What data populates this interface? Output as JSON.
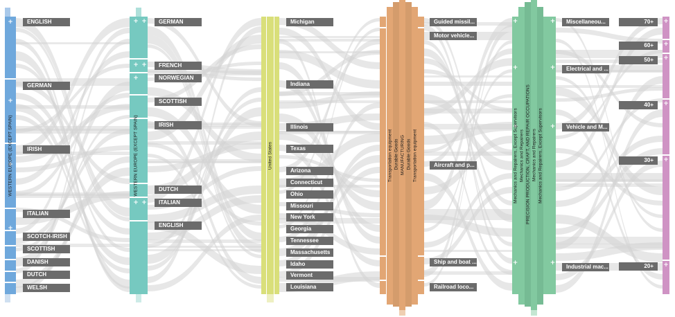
{
  "diagram": {
    "type": "parallel-sets",
    "dimensions": [
      {
        "name": "ancestry_region",
        "bar_label": "WESTERN EUROPE (EXCEPT SPAIN)",
        "color": "#6fa8dc",
        "categories": [
          "ENGLISH",
          "GERMAN",
          "IRISH",
          "ITALIAN",
          "SCOTCH-IRISH",
          "SCOTTISH",
          "DANISH",
          "DUTCH",
          "WELSH"
        ]
      },
      {
        "name": "ancestry_region_2",
        "bar_label": "WESTERN EUROPE (EXCEPT SPAIN)",
        "color": "#76c9c0",
        "categories": [
          "GERMAN",
          "FRENCH",
          "NORWEGIAN",
          "SCOTTISH",
          "IRISH",
          "DUTCH",
          "ITALIAN",
          "ENGLISH"
        ]
      },
      {
        "name": "birthplace",
        "bar_label": "United States",
        "color": "#d9df7a",
        "categories": [
          "Michigan",
          "Indiana",
          "Illinois",
          "Texas",
          "Arizona",
          "Connecticut",
          "Ohio",
          "Missouri",
          "New York",
          "Georgia",
          "Tennessee",
          "Massachusetts",
          "Idaho",
          "Vermont",
          "Louisiana"
        ]
      },
      {
        "name": "industry",
        "bar_labels": [
          "Transportation equipment",
          "Durable Goods",
          "MANUFACTURING",
          "Durable Goods",
          "Transportation equipment"
        ],
        "color": "#e2a674",
        "categories": [
          "Guided missil...",
          "Motor vehicle...",
          "Aircraft and p...",
          "Ship and boat ...",
          "Railroad loco..."
        ]
      },
      {
        "name": "occupation",
        "bar_labels": [
          "Mechanics and Repairers, Except Supervisors",
          "Mechanics and Repairers",
          "PRECISION PRODUCTION, CRAFT, AND REPAIR OCCUPATIONS",
          "Mechanics and Repairers",
          "Mechanics and Repairers, Except Supervisors"
        ],
        "color": "#82c9a0",
        "categories": [
          "Miscellaneou...",
          "Electrical and ...",
          "Vehicle and M...",
          "Industrial mac..."
        ]
      },
      {
        "name": "age",
        "color": "#cf93c4",
        "categories": [
          "70+",
          "60+",
          "50+",
          "40+",
          "30+",
          "20+"
        ]
      }
    ],
    "link_color": "#d4d4d4"
  }
}
